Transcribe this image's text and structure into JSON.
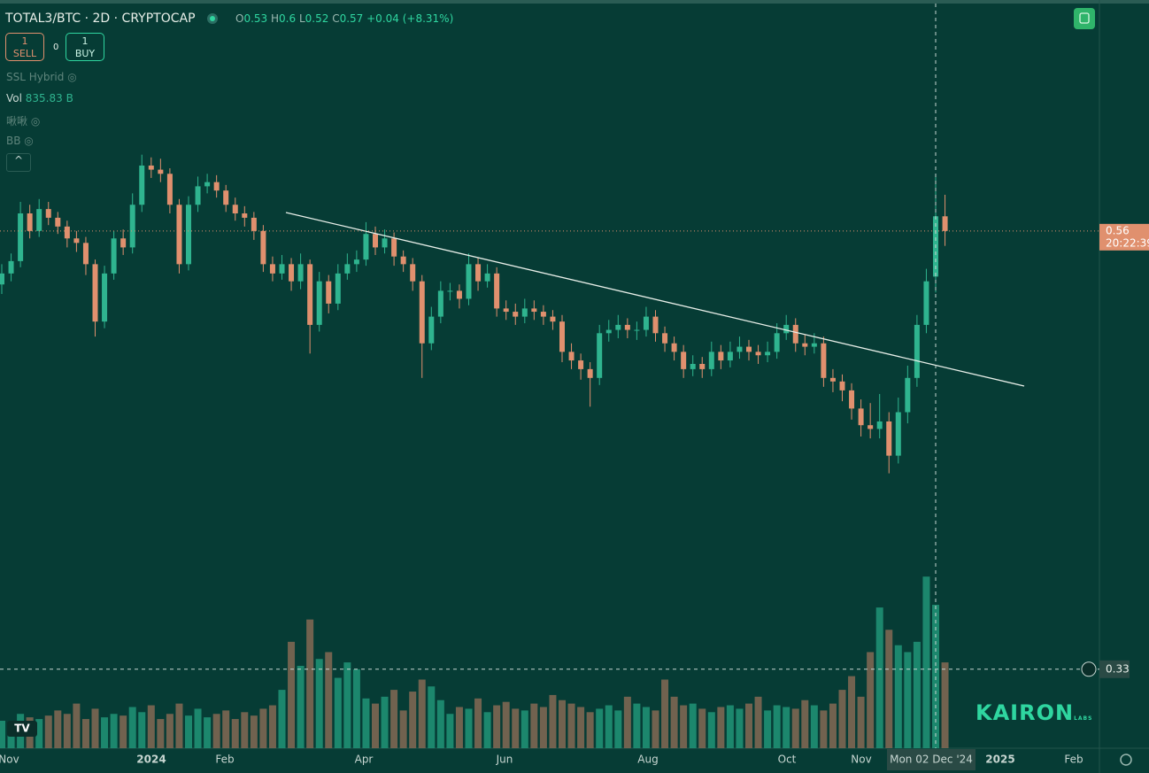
{
  "header": {
    "symbol": "TOTAL3/BTC · 2D · CRYPTOCAP",
    "o_label": "O",
    "o": "0.53",
    "h_label": "H",
    "h": "0.6",
    "l_label": "L",
    "l": "0.52",
    "c_label": "C",
    "c": "0.57",
    "change": "+0.04 (+8.31%)"
  },
  "trade": {
    "sell_qty": "1",
    "sell": "SELL",
    "spread": "0",
    "buy_qty": "1",
    "buy": "BUY"
  },
  "indicators": {
    "ssl": "SSL Hybrid",
    "vol": "Vol",
    "vol_value": "835.83 B",
    "custom": "啾啾",
    "bb": "BB"
  },
  "watermark": {
    "brand": "KAIRON",
    "sub": "LABS"
  },
  "chart_data": {
    "type": "candlestick",
    "log_scale": true,
    "ylim": [
      0.3,
      0.74
    ],
    "vol_ylim": [
      0,
      4360
    ],
    "up_color": "#2fb48f",
    "down_color": "#e0906e",
    "vol_up_color": "#1f8f73",
    "vol_down_color": "#7d6652",
    "last_price": 0.56,
    "countdown": "20:22:39",
    "crosshair_price": 0.33,
    "x_labels": [
      "Nov",
      "2024",
      "Feb",
      "Apr",
      "Jun",
      "Aug",
      "Oct",
      "Nov",
      "Mon 02 Dec '24",
      "2025",
      "Feb"
    ],
    "ohlc": [
      [
        0.525,
        0.538,
        0.519,
        0.532
      ],
      [
        0.532,
        0.545,
        0.527,
        0.54
      ],
      [
        0.54,
        0.58,
        0.536,
        0.572
      ],
      [
        0.572,
        0.578,
        0.555,
        0.56
      ],
      [
        0.56,
        0.582,
        0.556,
        0.575
      ],
      [
        0.575,
        0.58,
        0.564,
        0.569
      ],
      [
        0.569,
        0.573,
        0.558,
        0.563
      ],
      [
        0.563,
        0.567,
        0.549,
        0.555
      ],
      [
        0.555,
        0.56,
        0.546,
        0.552
      ],
      [
        0.552,
        0.556,
        0.531,
        0.538
      ],
      [
        0.538,
        0.541,
        0.493,
        0.502
      ],
      [
        0.502,
        0.537,
        0.498,
        0.532
      ],
      [
        0.532,
        0.56,
        0.528,
        0.555
      ],
      [
        0.555,
        0.561,
        0.544,
        0.549
      ],
      [
        0.549,
        0.586,
        0.545,
        0.578
      ],
      [
        0.578,
        0.614,
        0.573,
        0.606
      ],
      [
        0.606,
        0.612,
        0.597,
        0.603
      ],
      [
        0.603,
        0.611,
        0.594,
        0.6
      ],
      [
        0.6,
        0.604,
        0.572,
        0.578
      ],
      [
        0.578,
        0.582,
        0.532,
        0.538
      ],
      [
        0.538,
        0.584,
        0.534,
        0.578
      ],
      [
        0.578,
        0.598,
        0.573,
        0.591
      ],
      [
        0.591,
        0.6,
        0.586,
        0.594
      ],
      [
        0.594,
        0.599,
        0.583,
        0.588
      ],
      [
        0.588,
        0.592,
        0.573,
        0.578
      ],
      [
        0.578,
        0.583,
        0.567,
        0.572
      ],
      [
        0.572,
        0.577,
        0.563,
        0.569
      ],
      [
        0.569,
        0.573,
        0.554,
        0.56
      ],
      [
        0.56,
        0.564,
        0.533,
        0.538
      ],
      [
        0.538,
        0.543,
        0.527,
        0.532
      ],
      [
        0.532,
        0.544,
        0.528,
        0.538
      ],
      [
        0.538,
        0.542,
        0.521,
        0.527
      ],
      [
        0.527,
        0.545,
        0.522,
        0.538
      ],
      [
        0.538,
        0.541,
        0.483,
        0.5
      ],
      [
        0.5,
        0.533,
        0.496,
        0.527
      ],
      [
        0.527,
        0.531,
        0.507,
        0.513
      ],
      [
        0.513,
        0.538,
        0.509,
        0.532
      ],
      [
        0.532,
        0.545,
        0.528,
        0.538
      ],
      [
        0.538,
        0.547,
        0.533,
        0.541
      ],
      [
        0.541,
        0.566,
        0.537,
        0.558
      ],
      [
        0.558,
        0.563,
        0.544,
        0.549
      ],
      [
        0.549,
        0.561,
        0.545,
        0.555
      ],
      [
        0.555,
        0.559,
        0.537,
        0.543
      ],
      [
        0.543,
        0.547,
        0.533,
        0.538
      ],
      [
        0.538,
        0.542,
        0.521,
        0.527
      ],
      [
        0.527,
        0.531,
        0.469,
        0.489
      ],
      [
        0.489,
        0.511,
        0.485,
        0.505
      ],
      [
        0.505,
        0.527,
        0.501,
        0.521
      ],
      [
        0.521,
        0.526,
        0.515,
        0.521
      ],
      [
        0.521,
        0.525,
        0.51,
        0.516
      ],
      [
        0.516,
        0.545,
        0.512,
        0.538
      ],
      [
        0.538,
        0.542,
        0.521,
        0.527
      ],
      [
        0.527,
        0.538,
        0.523,
        0.532
      ],
      [
        0.532,
        0.536,
        0.505,
        0.51
      ],
      [
        0.51,
        0.515,
        0.503,
        0.508
      ],
      [
        0.508,
        0.513,
        0.5,
        0.505
      ],
      [
        0.505,
        0.516,
        0.501,
        0.51
      ],
      [
        0.51,
        0.515,
        0.503,
        0.508
      ],
      [
        0.508,
        0.512,
        0.5,
        0.505
      ],
      [
        0.505,
        0.509,
        0.497,
        0.502
      ],
      [
        0.502,
        0.506,
        0.478,
        0.484
      ],
      [
        0.484,
        0.489,
        0.474,
        0.479
      ],
      [
        0.479,
        0.483,
        0.468,
        0.474
      ],
      [
        0.474,
        0.478,
        0.453,
        0.469
      ],
      [
        0.469,
        0.5,
        0.465,
        0.495
      ],
      [
        0.495,
        0.503,
        0.49,
        0.497
      ],
      [
        0.497,
        0.506,
        0.492,
        0.5
      ],
      [
        0.5,
        0.504,
        0.492,
        0.497
      ],
      [
        0.497,
        0.502,
        0.491,
        0.497
      ],
      [
        0.497,
        0.511,
        0.493,
        0.505
      ],
      [
        0.505,
        0.509,
        0.49,
        0.495
      ],
      [
        0.495,
        0.499,
        0.484,
        0.489
      ],
      [
        0.489,
        0.493,
        0.479,
        0.484
      ],
      [
        0.484,
        0.488,
        0.469,
        0.474
      ],
      [
        0.474,
        0.482,
        0.47,
        0.477
      ],
      [
        0.477,
        0.481,
        0.469,
        0.474
      ],
      [
        0.474,
        0.49,
        0.47,
        0.484
      ],
      [
        0.484,
        0.488,
        0.474,
        0.479
      ],
      [
        0.479,
        0.49,
        0.475,
        0.484
      ],
      [
        0.484,
        0.493,
        0.48,
        0.487
      ],
      [
        0.487,
        0.491,
        0.479,
        0.484
      ],
      [
        0.484,
        0.488,
        0.477,
        0.482
      ],
      [
        0.482,
        0.49,
        0.478,
        0.484
      ],
      [
        0.484,
        0.501,
        0.48,
        0.495
      ],
      [
        0.495,
        0.506,
        0.491,
        0.5
      ],
      [
        0.5,
        0.504,
        0.484,
        0.489
      ],
      [
        0.489,
        0.494,
        0.482,
        0.487
      ],
      [
        0.487,
        0.495,
        0.483,
        0.489
      ],
      [
        0.489,
        0.493,
        0.464,
        0.469
      ],
      [
        0.469,
        0.474,
        0.461,
        0.467
      ],
      [
        0.467,
        0.471,
        0.456,
        0.462
      ],
      [
        0.462,
        0.466,
        0.446,
        0.452
      ],
      [
        0.452,
        0.457,
        0.437,
        0.443
      ],
      [
        0.443,
        0.455,
        0.436,
        0.441
      ],
      [
        0.441,
        0.46,
        0.436,
        0.445
      ],
      [
        0.445,
        0.45,
        0.418,
        0.427
      ],
      [
        0.427,
        0.458,
        0.423,
        0.45
      ],
      [
        0.45,
        0.476,
        0.444,
        0.469
      ],
      [
        0.469,
        0.506,
        0.464,
        0.5
      ],
      [
        0.5,
        0.535,
        0.495,
        0.527
      ],
      [
        0.53,
        0.6,
        0.52,
        0.57
      ],
      [
        0.57,
        0.585,
        0.55,
        0.56
      ]
    ],
    "volume": [
      160,
      150,
      200,
      180,
      170,
      190,
      220,
      200,
      260,
      170,
      230,
      180,
      200,
      190,
      240,
      210,
      250,
      170,
      200,
      260,
      190,
      230,
      180,
      200,
      220,
      170,
      210,
      190,
      230,
      250,
      340,
      620,
      480,
      750,
      520,
      560,
      410,
      500,
      460,
      290,
      260,
      300,
      340,
      220,
      330,
      400,
      360,
      280,
      200,
      240,
      230,
      290,
      210,
      250,
      270,
      230,
      220,
      260,
      240,
      310,
      280,
      260,
      240,
      210,
      230,
      250,
      220,
      300,
      260,
      240,
      220,
      400,
      300,
      250,
      260,
      230,
      210,
      240,
      250,
      230,
      260,
      300,
      220,
      250,
      240,
      230,
      280,
      250,
      220,
      260,
      340,
      420,
      300,
      560,
      820,
      690,
      600,
      560,
      620,
      1000,
      835.83,
      500
    ]
  }
}
